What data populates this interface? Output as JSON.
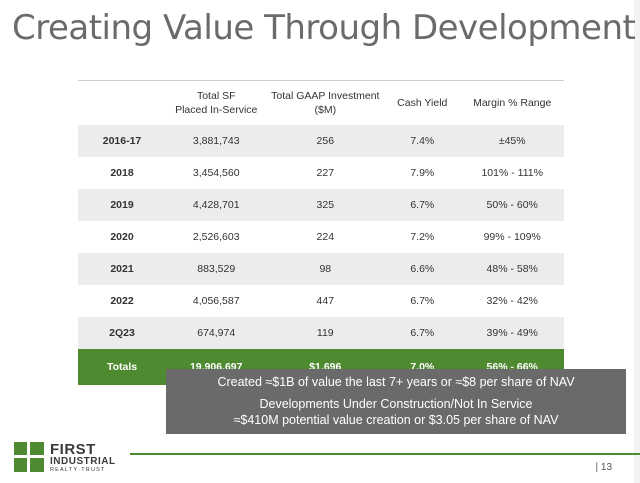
{
  "title": "Creating Value Through Development",
  "table": {
    "headers": [
      {
        "line1": "",
        "line2": ""
      },
      {
        "line1": "Total SF",
        "line2": "Placed In-Service"
      },
      {
        "line1": "Total GAAP Investment",
        "line2": "($M)"
      },
      {
        "line1": "Cash Yield",
        "line2": ""
      },
      {
        "line1": "Margin % Range",
        "line2": ""
      }
    ],
    "rows": [
      {
        "period": "2016-17",
        "sf": "3,881,743",
        "investment": "256",
        "yield": "7.4%",
        "margin": "±45%"
      },
      {
        "period": "2018",
        "sf": "3,454,560",
        "investment": "227",
        "yield": "7.9%",
        "margin": "101% - 111%"
      },
      {
        "period": "2019",
        "sf": "4,428,701",
        "investment": "325",
        "yield": "6.7%",
        "margin": "50% - 60%"
      },
      {
        "period": "2020",
        "sf": "2,526,603",
        "investment": "224",
        "yield": "7.2%",
        "margin": "99% - 109%"
      },
      {
        "period": "2021",
        "sf": "883,529",
        "investment": "98",
        "yield": "6.6%",
        "margin": "48% - 58%"
      },
      {
        "period": "2022",
        "sf": "4,056,587",
        "investment": "447",
        "yield": "6.7%",
        "margin": "32% - 42%"
      },
      {
        "period": "2Q23",
        "sf": "674,974",
        "investment": "119",
        "yield": "6.7%",
        "margin": "39% - 49%"
      }
    ],
    "totals": {
      "period": "Totals",
      "sf": "19,906,697",
      "investment": "$1,696",
      "yield": "7.0%",
      "margin": "56% - 66%"
    }
  },
  "callout": {
    "line1": "Created ≈$1B of value the last 7+ years or ≈$8 per share of NAV",
    "line2": "Developments Under Construction/Not In Service",
    "line3": "≈$410M potential value creation or $3.05 per share of NAV"
  },
  "logo": {
    "word1": "FIRST",
    "word2": "INDUSTRIAL",
    "word3": "REALTY·TRUST"
  },
  "page_number": "| 13",
  "colors": {
    "accent_green": "#4e8a2f",
    "callout_gray": "#6a6a6a",
    "shaded_row": "#ececec"
  }
}
